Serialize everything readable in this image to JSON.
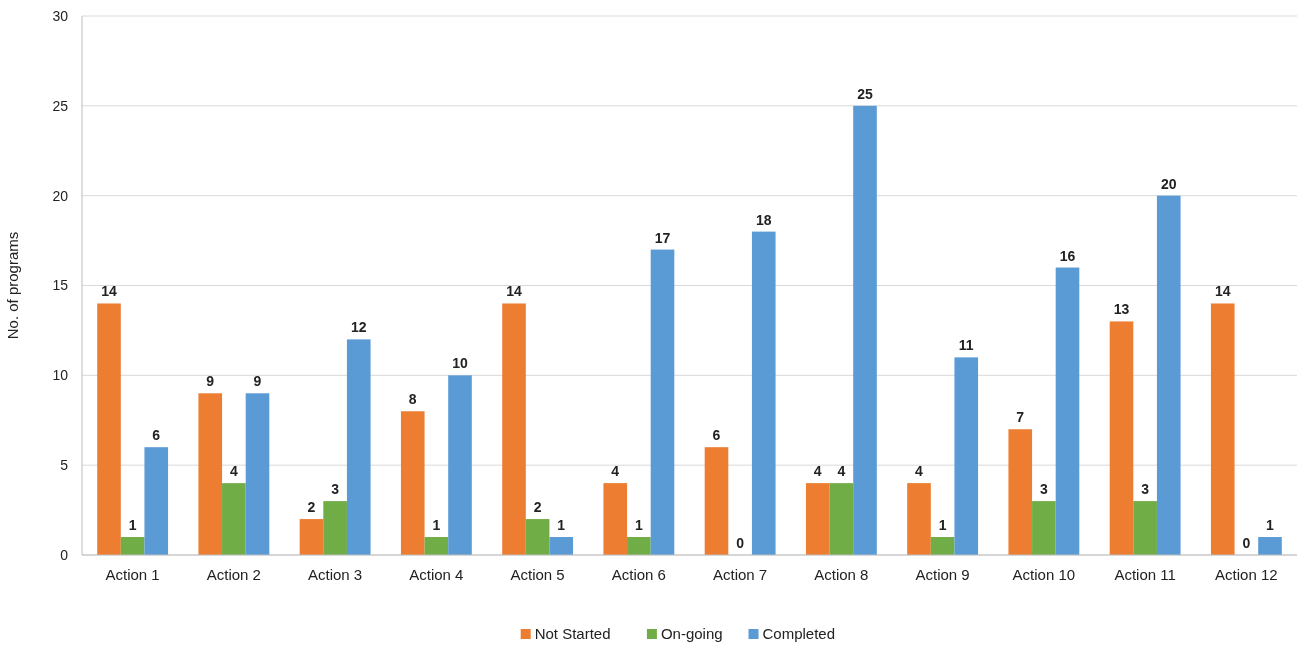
{
  "chart_data": {
    "type": "bar",
    "ylabel": "No. of programs",
    "categories": [
      "Action 1",
      "Action 2",
      "Action 3",
      "Action 4",
      "Action 5",
      "Action 6",
      "Action 7",
      "Action 8",
      "Action 9",
      "Action 10",
      "Action 11",
      "Action 12"
    ],
    "series": [
      {
        "name": "Not Started",
        "color": "#ed7d31",
        "values": [
          14,
          9,
          2,
          8,
          14,
          4,
          6,
          4,
          4,
          7,
          13,
          14
        ]
      },
      {
        "name": "On-going",
        "color": "#70ad47",
        "values": [
          1,
          4,
          3,
          1,
          2,
          1,
          0,
          4,
          1,
          3,
          3,
          0
        ]
      },
      {
        "name": "Completed",
        "color": "#5b9bd5",
        "values": [
          6,
          9,
          12,
          10,
          1,
          17,
          18,
          25,
          11,
          16,
          20,
          1
        ]
      }
    ],
    "ylim": [
      0,
      30
    ],
    "yticks": [
      0,
      5,
      10,
      15,
      20,
      25,
      30
    ],
    "grid": "y",
    "legend": "bottom",
    "data_labels": true
  }
}
